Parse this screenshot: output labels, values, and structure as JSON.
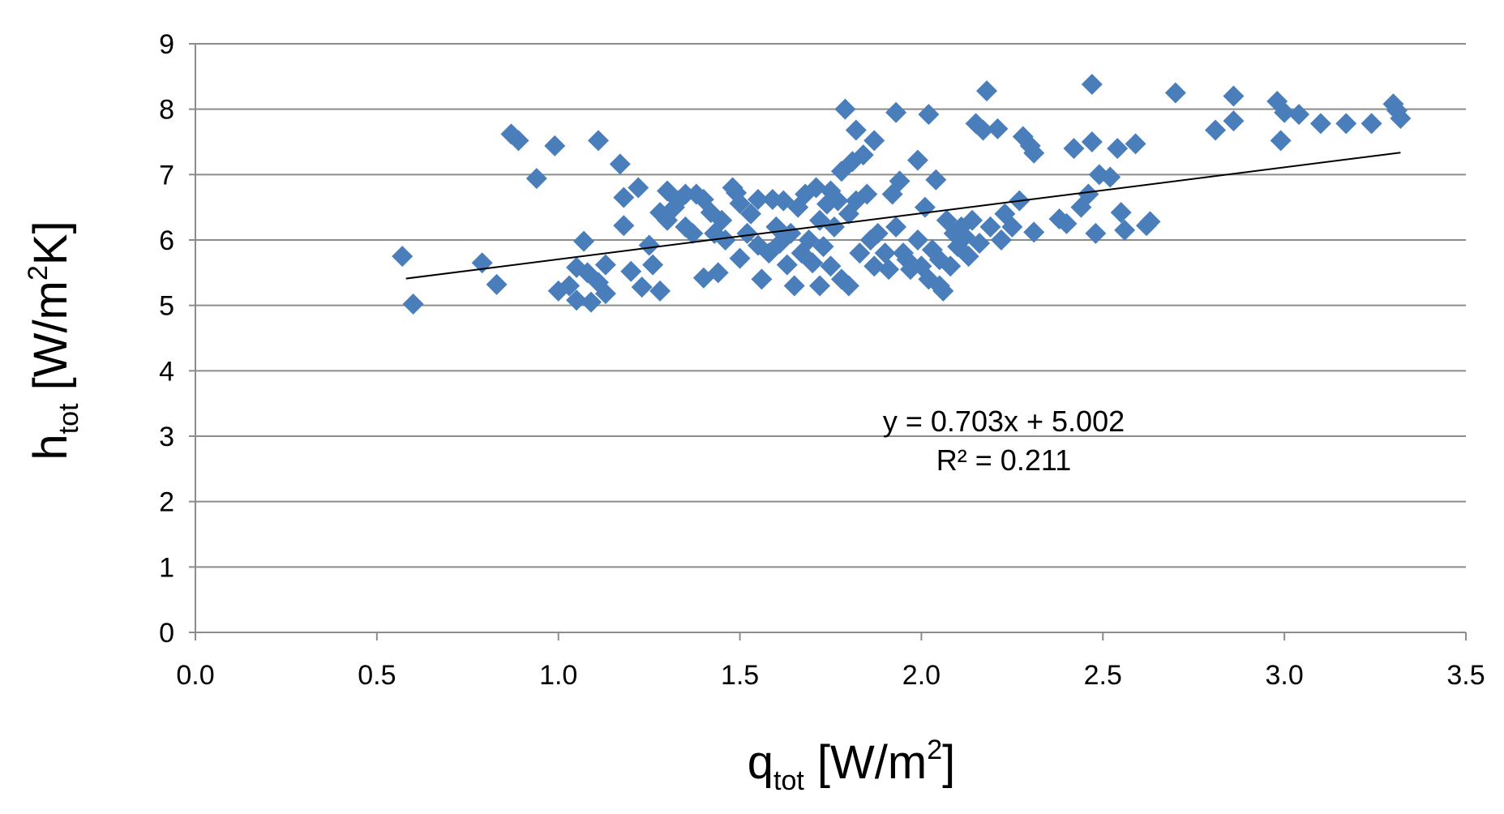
{
  "chart_data": {
    "type": "scatter",
    "xlabel": {
      "main": "q",
      "sub": "tot",
      "unit_prefix": " [W/m",
      "sup": "2",
      "unit_suffix": "]"
    },
    "ylabel": {
      "main": "h",
      "sub": "tot",
      "unit_prefix": " [W/m",
      "sup": "2",
      "unit_suffix": "K]"
    },
    "xlim": [
      0,
      3.5
    ],
    "ylim": [
      0,
      9
    ],
    "x_ticks": [
      "0.0",
      "0.5",
      "1.0",
      "1.5",
      "2.0",
      "2.5",
      "3.0",
      "3.5"
    ],
    "y_ticks": [
      "0",
      "1",
      "2",
      "3",
      "4",
      "5",
      "6",
      "7",
      "8",
      "9"
    ],
    "grid": "horizontal",
    "marker": "diamond",
    "marker_color": "#4a7ebb",
    "trendline": {
      "slope": 0.703,
      "intercept": 5.002,
      "x_range": [
        0.58,
        3.32
      ],
      "color": "#000000"
    },
    "equation_text": "y = 0.703x + 5.002",
    "r2_text": "R² = 0.211",
    "points": [
      [
        0.57,
        5.75
      ],
      [
        0.6,
        5.02
      ],
      [
        0.79,
        5.65
      ],
      [
        0.83,
        5.32
      ],
      [
        0.87,
        7.62
      ],
      [
        0.89,
        7.52
      ],
      [
        0.94,
        6.94
      ],
      [
        0.99,
        7.44
      ],
      [
        1.0,
        5.22
      ],
      [
        1.03,
        5.3
      ],
      [
        1.05,
        5.08
      ],
      [
        1.05,
        5.58
      ],
      [
        1.07,
        5.98
      ],
      [
        1.08,
        5.5
      ],
      [
        1.09,
        5.05
      ],
      [
        1.11,
        5.35
      ],
      [
        1.11,
        7.52
      ],
      [
        1.13,
        5.18
      ],
      [
        1.13,
        5.62
      ],
      [
        1.17,
        7.16
      ],
      [
        1.18,
        6.65
      ],
      [
        1.18,
        6.22
      ],
      [
        1.2,
        5.52
      ],
      [
        1.22,
        6.8
      ],
      [
        1.23,
        5.28
      ],
      [
        1.25,
        5.92
      ],
      [
        1.26,
        5.62
      ],
      [
        1.28,
        5.22
      ],
      [
        1.28,
        6.42
      ],
      [
        1.3,
        6.3
      ],
      [
        1.3,
        6.75
      ],
      [
        1.32,
        6.5
      ],
      [
        1.33,
        6.6
      ],
      [
        1.35,
        6.7
      ],
      [
        1.35,
        6.2
      ],
      [
        1.37,
        6.1
      ],
      [
        1.38,
        6.7
      ],
      [
        1.4,
        6.62
      ],
      [
        1.4,
        5.42
      ],
      [
        1.42,
        6.42
      ],
      [
        1.43,
        6.1
      ],
      [
        1.44,
        5.5
      ],
      [
        1.45,
        6.3
      ],
      [
        1.46,
        6.0
      ],
      [
        1.48,
        6.8
      ],
      [
        1.49,
        6.72
      ],
      [
        1.5,
        6.56
      ],
      [
        1.5,
        5.72
      ],
      [
        1.52,
        6.1
      ],
      [
        1.53,
        6.4
      ],
      [
        1.55,
        6.62
      ],
      [
        1.55,
        5.92
      ],
      [
        1.56,
        5.4
      ],
      [
        1.58,
        5.8
      ],
      [
        1.59,
        6.62
      ],
      [
        1.6,
        6.2
      ],
      [
        1.61,
        5.95
      ],
      [
        1.62,
        6.6
      ],
      [
        1.63,
        5.62
      ],
      [
        1.64,
        6.1
      ],
      [
        1.65,
        5.3
      ],
      [
        1.66,
        6.5
      ],
      [
        1.67,
        5.8
      ],
      [
        1.68,
        6.7
      ],
      [
        1.69,
        6.0
      ],
      [
        1.7,
        5.65
      ],
      [
        1.71,
        6.8
      ],
      [
        1.72,
        5.3
      ],
      [
        1.72,
        6.3
      ],
      [
        1.73,
        5.9
      ],
      [
        1.74,
        6.55
      ],
      [
        1.75,
        6.75
      ],
      [
        1.75,
        5.6
      ],
      [
        1.76,
        6.2
      ],
      [
        1.77,
        6.6
      ],
      [
        1.78,
        5.4
      ],
      [
        1.78,
        7.05
      ],
      [
        1.79,
        8.0
      ],
      [
        1.8,
        5.3
      ],
      [
        1.8,
        6.4
      ],
      [
        1.81,
        7.2
      ],
      [
        1.82,
        7.68
      ],
      [
        1.82,
        6.6
      ],
      [
        1.83,
        5.8
      ],
      [
        1.84,
        7.3
      ],
      [
        1.85,
        6.7
      ],
      [
        1.86,
        6.0
      ],
      [
        1.87,
        7.52
      ],
      [
        1.87,
        5.6
      ],
      [
        1.88,
        6.1
      ],
      [
        1.9,
        5.8
      ],
      [
        1.91,
        5.55
      ],
      [
        1.92,
        6.7
      ],
      [
        1.93,
        7.95
      ],
      [
        1.93,
        6.2
      ],
      [
        1.94,
        6.9
      ],
      [
        1.95,
        5.8
      ],
      [
        1.96,
        5.7
      ],
      [
        1.97,
        5.55
      ],
      [
        1.99,
        7.22
      ],
      [
        1.99,
        6.0
      ],
      [
        2.0,
        5.6
      ],
      [
        2.01,
        6.5
      ],
      [
        2.02,
        5.4
      ],
      [
        2.02,
        7.92
      ],
      [
        2.03,
        5.85
      ],
      [
        2.04,
        6.92
      ],
      [
        2.05,
        5.3
      ],
      [
        2.05,
        5.7
      ],
      [
        2.06,
        5.22
      ],
      [
        2.07,
        6.3
      ],
      [
        2.08,
        5.6
      ],
      [
        2.09,
        6.1
      ],
      [
        2.1,
        5.9
      ],
      [
        2.11,
        6.2
      ],
      [
        2.12,
        6.05
      ],
      [
        2.13,
        5.75
      ],
      [
        2.14,
        6.3
      ],
      [
        2.15,
        7.78
      ],
      [
        2.16,
        5.95
      ],
      [
        2.17,
        7.68
      ],
      [
        2.18,
        8.28
      ],
      [
        2.19,
        6.2
      ],
      [
        2.21,
        7.7
      ],
      [
        2.22,
        6.0
      ],
      [
        2.23,
        6.4
      ],
      [
        2.25,
        6.2
      ],
      [
        2.27,
        6.6
      ],
      [
        2.28,
        7.58
      ],
      [
        2.3,
        7.44
      ],
      [
        2.31,
        7.33
      ],
      [
        2.31,
        6.12
      ],
      [
        2.38,
        6.32
      ],
      [
        2.4,
        6.25
      ],
      [
        2.42,
        7.4
      ],
      [
        2.44,
        6.5
      ],
      [
        2.46,
        6.7
      ],
      [
        2.47,
        8.38
      ],
      [
        2.47,
        7.5
      ],
      [
        2.48,
        6.1
      ],
      [
        2.49,
        7.0
      ],
      [
        2.52,
        6.96
      ],
      [
        2.54,
        7.4
      ],
      [
        2.55,
        6.42
      ],
      [
        2.56,
        6.15
      ],
      [
        2.59,
        7.47
      ],
      [
        2.62,
        6.22
      ],
      [
        2.63,
        6.28
      ],
      [
        2.7,
        8.25
      ],
      [
        2.81,
        7.68
      ],
      [
        2.86,
        8.2
      ],
      [
        2.86,
        7.82
      ],
      [
        2.98,
        8.12
      ],
      [
        2.99,
        7.52
      ],
      [
        3.0,
        7.95
      ],
      [
        3.04,
        7.92
      ],
      [
        3.1,
        7.78
      ],
      [
        3.17,
        7.78
      ],
      [
        3.24,
        7.78
      ],
      [
        3.3,
        8.08
      ],
      [
        3.31,
        7.98
      ],
      [
        3.32,
        7.86
      ]
    ]
  }
}
